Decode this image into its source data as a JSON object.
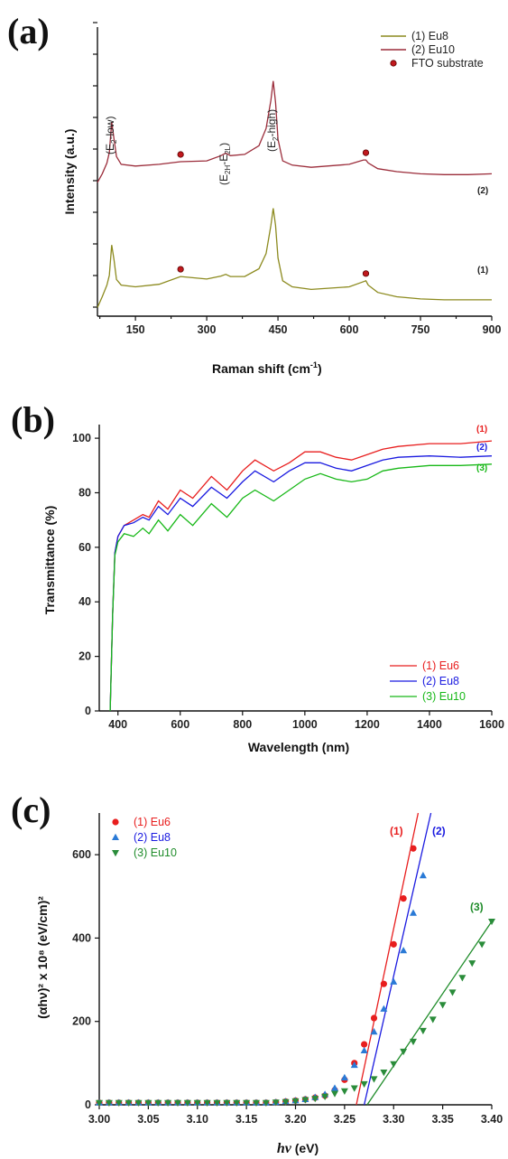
{
  "panels": {
    "a": {
      "label": "(a)"
    },
    "b": {
      "label": "(b)"
    },
    "c": {
      "label": "(c)"
    }
  },
  "colors": {
    "eu8_a": "#8c8a1e",
    "eu10_a": "#9b2c3a",
    "fto_dot": "#c0181d",
    "eu6": "#e81e1e",
    "eu8": "#1a1ae0",
    "eu10_b": "#18b818",
    "eu10_c": "#1f8c2a"
  },
  "chart_data": [
    {
      "id": "a",
      "type": "line",
      "xlabel": "Raman shift (cm",
      "xlabel_sup": "-1",
      "xlabel_end": ")",
      "ylabel": "Intensity (a.u.)",
      "xlim": [
        70,
        900
      ],
      "xticks": [
        150,
        300,
        450,
        600,
        750,
        900
      ],
      "grid": false,
      "legend_position": "top-right",
      "legend": [
        "(1) Eu8",
        "(2) Eu10",
        "FTO substrate"
      ],
      "peaks": [
        {
          "x": 100,
          "main": "(E",
          "sub": "2",
          "rest": "-low)"
        },
        {
          "x": 340,
          "main": "(E",
          "sub": "2H",
          "mid": "-E",
          "sub2": "2L",
          "rest": ")"
        },
        {
          "x": 440,
          "main": "(E",
          "sub": "2",
          "rest": "-high)"
        }
      ],
      "curve_labels": [
        "(2)",
        "(1)"
      ],
      "fto_markers_x": [
        245,
        635
      ],
      "series": [
        {
          "name": "(1) Eu8",
          "x": [
            70,
            80,
            90,
            95,
            100,
            105,
            110,
            120,
            150,
            200,
            245,
            300,
            330,
            340,
            350,
            380,
            410,
            425,
            435,
            440,
            445,
            450,
            460,
            480,
            520,
            600,
            630,
            635,
            640,
            660,
            700,
            750,
            800,
            850,
            900
          ],
          "y": [
            0.2,
            0.45,
            0.72,
            0.95,
            1.65,
            1.3,
            0.85,
            0.72,
            0.68,
            0.74,
            0.92,
            0.86,
            0.93,
            0.97,
            0.92,
            0.92,
            1.1,
            1.45,
            2.1,
            2.5,
            2.1,
            1.35,
            0.82,
            0.68,
            0.62,
            0.68,
            0.8,
            0.82,
            0.72,
            0.55,
            0.45,
            0.4,
            0.38,
            0.38,
            0.38
          ]
        },
        {
          "name": "(2) Eu10",
          "x": [
            70,
            80,
            90,
            95,
            100,
            105,
            110,
            120,
            150,
            200,
            245,
            300,
            330,
            340,
            350,
            380,
            410,
            425,
            435,
            440,
            445,
            450,
            460,
            480,
            520,
            600,
            630,
            635,
            640,
            660,
            700,
            750,
            800,
            850,
            900
          ],
          "y": [
            3.1,
            3.3,
            3.55,
            3.8,
            4.5,
            4.1,
            3.7,
            3.52,
            3.48,
            3.52,
            3.58,
            3.6,
            3.72,
            3.78,
            3.72,
            3.75,
            3.95,
            4.35,
            5.0,
            5.45,
            4.95,
            4.1,
            3.6,
            3.5,
            3.45,
            3.52,
            3.62,
            3.62,
            3.55,
            3.42,
            3.35,
            3.3,
            3.28,
            3.28,
            3.3
          ]
        }
      ]
    },
    {
      "id": "b",
      "type": "line",
      "xlabel": "Wavelength (nm)",
      "ylabel": "Transmittance (%)",
      "xlim": [
        340,
        1600
      ],
      "ylim": [
        0,
        105
      ],
      "xticks": [
        400,
        600,
        800,
        1000,
        1200,
        1400,
        1600
      ],
      "yticks": [
        0,
        20,
        40,
        60,
        80,
        100
      ],
      "grid": false,
      "legend_position": "bottom-right",
      "curve_labels": [
        "(1)",
        "(2)",
        "(3)"
      ],
      "series": [
        {
          "name": "(1) Eu6",
          "x": [
            375,
            383,
            390,
            400,
            420,
            450,
            480,
            500,
            530,
            560,
            600,
            640,
            700,
            750,
            800,
            840,
            900,
            950,
            1000,
            1050,
            1100,
            1150,
            1200,
            1250,
            1300,
            1400,
            1500,
            1600
          ],
          "y": [
            0,
            35,
            58,
            64,
            68,
            70,
            72,
            71,
            77,
            74,
            81,
            78,
            86,
            81,
            88,
            92,
            88,
            91,
            95,
            95,
            93,
            92,
            94,
            96,
            97,
            98,
            98,
            99
          ]
        },
        {
          "name": "(2) Eu8",
          "x": [
            375,
            383,
            390,
            400,
            420,
            450,
            480,
            500,
            530,
            560,
            600,
            640,
            700,
            750,
            800,
            840,
            900,
            950,
            1000,
            1050,
            1100,
            1150,
            1200,
            1250,
            1300,
            1400,
            1500,
            1600
          ],
          "y": [
            0,
            35,
            58,
            64,
            68,
            69,
            71,
            70,
            75,
            72,
            78,
            75,
            82,
            78,
            84,
            88,
            84,
            88,
            91,
            91,
            89,
            88,
            90,
            92,
            93,
            93.5,
            93,
            93.5
          ]
        },
        {
          "name": "(3) Eu10",
          "x": [
            375,
            383,
            390,
            400,
            420,
            450,
            480,
            500,
            530,
            560,
            600,
            640,
            700,
            750,
            800,
            840,
            900,
            950,
            1000,
            1050,
            1100,
            1150,
            1200,
            1250,
            1300,
            1400,
            1500,
            1600
          ],
          "y": [
            0,
            35,
            57,
            62,
            65,
            64,
            67,
            65,
            70,
            66,
            72,
            68,
            76,
            71,
            78,
            81,
            77,
            81,
            85,
            87,
            85,
            84,
            85,
            88,
            89,
            90,
            90,
            90.5
          ]
        }
      ]
    },
    {
      "id": "c",
      "type": "scatter",
      "xlabel_main": "h",
      "xlabel_nu": "ν",
      "xlabel_unit": " (eV)",
      "ylabel": "(αhν)² x 10⁸ (eV/cm)²",
      "xlim": [
        3.0,
        3.4
      ],
      "ylim": [
        0,
        700
      ],
      "xticks": [
        3.0,
        3.05,
        3.1,
        3.15,
        3.2,
        3.25,
        3.3,
        3.35,
        3.4
      ],
      "yticks": [
        0,
        200,
        400,
        600
      ],
      "grid": false,
      "legend_position": "top-left",
      "curve_labels": [
        "(1)",
        "(2)",
        "(3)"
      ],
      "series": [
        {
          "name": "(1) Eu6",
          "marker": "circle",
          "x": [
            3.0,
            3.01,
            3.02,
            3.03,
            3.04,
            3.05,
            3.06,
            3.07,
            3.08,
            3.09,
            3.1,
            3.11,
            3.12,
            3.13,
            3.14,
            3.15,
            3.16,
            3.17,
            3.18,
            3.19,
            3.2,
            3.21,
            3.22,
            3.23,
            3.24,
            3.25,
            3.26,
            3.27,
            3.28,
            3.29,
            3.3,
            3.31,
            3.32
          ],
          "y": [
            5,
            5,
            5,
            5,
            5,
            5,
            5,
            5,
            5,
            5,
            5,
            5,
            5,
            5,
            5,
            5,
            5,
            5,
            6,
            8,
            10,
            13,
            17,
            22,
            35,
            60,
            100,
            145,
            208,
            290,
            385,
            495,
            615
          ],
          "fit": {
            "x": [
              3.262,
              3.325
            ],
            "y": [
              0,
              700
            ]
          }
        },
        {
          "name": "(2) Eu8",
          "marker": "triangle-up",
          "x": [
            3.0,
            3.01,
            3.02,
            3.03,
            3.04,
            3.05,
            3.06,
            3.07,
            3.08,
            3.09,
            3.1,
            3.11,
            3.12,
            3.13,
            3.14,
            3.15,
            3.16,
            3.17,
            3.18,
            3.19,
            3.2,
            3.21,
            3.22,
            3.23,
            3.24,
            3.25,
            3.26,
            3.27,
            3.28,
            3.29,
            3.3,
            3.31,
            3.32,
            3.33
          ],
          "y": [
            5,
            5,
            5,
            5,
            5,
            5,
            5,
            5,
            5,
            5,
            5,
            5,
            5,
            5,
            5,
            5,
            5,
            5,
            6,
            8,
            10,
            13,
            18,
            25,
            40,
            65,
            95,
            130,
            175,
            230,
            295,
            370,
            460,
            550
          ],
          "fit": {
            "x": [
              3.27,
              3.338
            ],
            "y": [
              0,
              700
            ]
          }
        },
        {
          "name": "(3) Eu10",
          "marker": "triangle-down",
          "x": [
            3.0,
            3.01,
            3.02,
            3.03,
            3.04,
            3.05,
            3.06,
            3.07,
            3.08,
            3.09,
            3.1,
            3.11,
            3.12,
            3.13,
            3.14,
            3.15,
            3.16,
            3.17,
            3.18,
            3.19,
            3.2,
            3.21,
            3.22,
            3.23,
            3.24,
            3.25,
            3.26,
            3.27,
            3.28,
            3.29,
            3.3,
            3.31,
            3.32,
            3.33,
            3.34,
            3.35,
            3.36,
            3.37,
            3.38,
            3.39,
            3.4
          ],
          "y": [
            5,
            5,
            5,
            5,
            5,
            5,
            5,
            5,
            5,
            5,
            5,
            5,
            5,
            5,
            5,
            5,
            5,
            5,
            6,
            7,
            9,
            12,
            15,
            20,
            27,
            33,
            40,
            50,
            62,
            78,
            98,
            128,
            152,
            178,
            205,
            240,
            270,
            305,
            340,
            385,
            440
          ],
          "fit": {
            "x": [
              3.273,
              3.4
            ],
            "y": [
              0,
              440
            ]
          }
        }
      ]
    }
  ]
}
